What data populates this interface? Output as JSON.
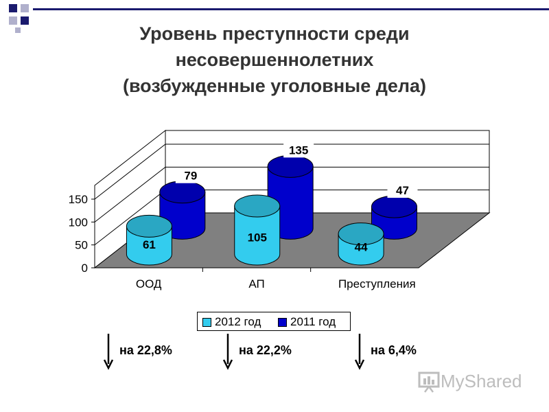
{
  "slide": {
    "title_lines": [
      "Уровень преступности среди",
      "несовершеннолетних",
      "(возбужденные уголовные дела)"
    ]
  },
  "chart_data": {
    "type": "bar",
    "categories": [
      "ООД",
      "АП",
      "Преступления"
    ],
    "series": [
      {
        "name": "2012 год",
        "values": [
          61,
          105,
          44
        ],
        "color": "#33CCEE"
      },
      {
        "name": "2011 год",
        "values": [
          79,
          135,
          47
        ],
        "color": "#0000CC"
      }
    ],
    "ylim": [
      0,
      150
    ],
    "yticks": [
      "0",
      "50",
      "100",
      "150"
    ],
    "data_labels": {
      "2012 год": [
        "61",
        "105",
        "44"
      ],
      "2011 год": [
        "79",
        "135",
        "47"
      ]
    },
    "grid": true,
    "legend": "bottom",
    "style": "3d-cylinder"
  },
  "changes": [
    {
      "direction": "down",
      "text": "на 22,8%"
    },
    {
      "direction": "down",
      "text": "на 22,2%"
    },
    {
      "direction": "down",
      "text": "на 6,4%"
    }
  ],
  "colors": {
    "floor": "#808080",
    "wall": "#ffffff",
    "accent_navy": "#1a1a6e",
    "accent_gray": "#b0b0cc"
  },
  "watermark": {
    "text": "MyShared",
    "icon": "presentation-board-icon"
  }
}
